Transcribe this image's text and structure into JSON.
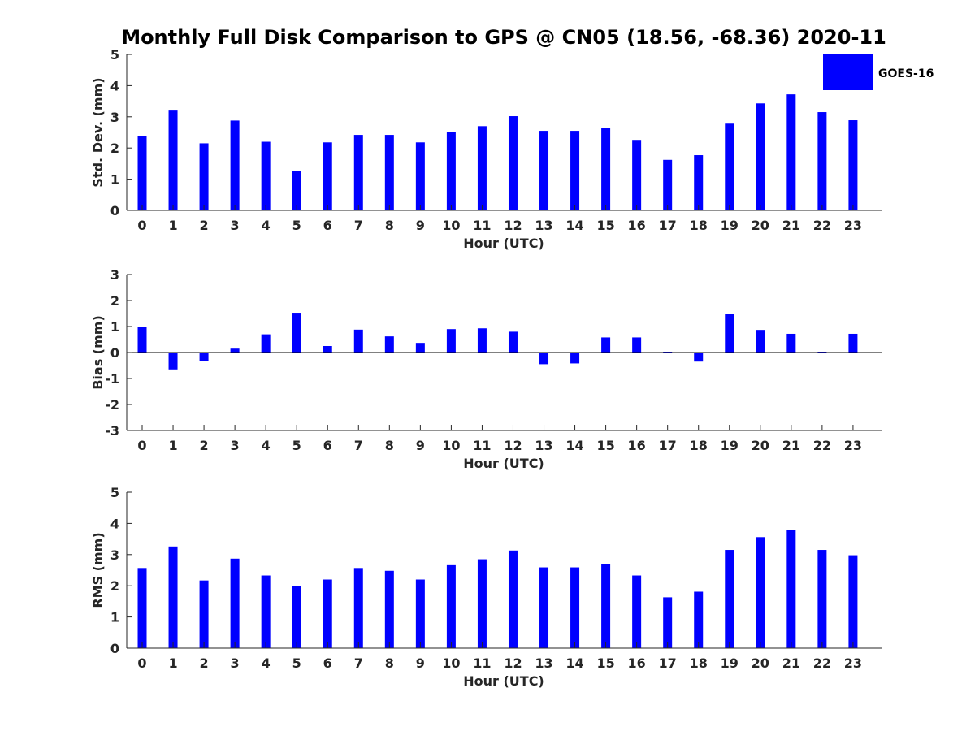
{
  "title": "Monthly Full Disk Comparison to GPS @ CN05 (18.56, -68.36) 2020-11",
  "legend": {
    "label": "GOES-16",
    "color": "#0000ff",
    "placement": "top-right"
  },
  "colors": {
    "bar": "#0000ff",
    "axis": "#262626"
  },
  "chart_data": [
    {
      "type": "bar",
      "xlabel": "Hour (UTC)",
      "ylabel": "Std. Dev. (mm)",
      "ylim": [
        0,
        5
      ],
      "yticks": [
        0,
        1,
        2,
        3,
        4,
        5
      ],
      "categories": [
        "0",
        "1",
        "2",
        "3",
        "4",
        "5",
        "6",
        "7",
        "8",
        "9",
        "10",
        "11",
        "12",
        "13",
        "14",
        "15",
        "16",
        "17",
        "18",
        "19",
        "20",
        "21",
        "22",
        "23"
      ],
      "series": [
        {
          "name": "GOES-16",
          "values": [
            2.39,
            3.2,
            2.15,
            2.88,
            2.2,
            1.25,
            2.18,
            2.42,
            2.42,
            2.18,
            2.5,
            2.7,
            3.02,
            2.55,
            2.55,
            2.63,
            2.26,
            1.62,
            1.77,
            2.78,
            3.43,
            3.72,
            3.15,
            2.89
          ]
        }
      ],
      "grid": false
    },
    {
      "type": "bar",
      "xlabel": "Hour (UTC)",
      "ylabel": "Bias (mm)",
      "ylim": [
        -3,
        3
      ],
      "yticks": [
        -3,
        -2,
        -1,
        0,
        1,
        2,
        3
      ],
      "categories": [
        "0",
        "1",
        "2",
        "3",
        "4",
        "5",
        "6",
        "7",
        "8",
        "9",
        "10",
        "11",
        "12",
        "13",
        "14",
        "15",
        "16",
        "17",
        "18",
        "19",
        "20",
        "21",
        "22",
        "23"
      ],
      "series": [
        {
          "name": "GOES-16",
          "values": [
            0.97,
            -0.65,
            -0.32,
            0.15,
            0.7,
            1.53,
            0.25,
            0.88,
            0.62,
            0.37,
            0.9,
            0.93,
            0.8,
            -0.45,
            -0.42,
            0.58,
            0.58,
            0.03,
            -0.35,
            1.5,
            0.87,
            0.72,
            0.03,
            0.72
          ]
        }
      ],
      "grid": false
    },
    {
      "type": "bar",
      "xlabel": "Hour (UTC)",
      "ylabel": "RMS (mm)",
      "ylim": [
        0,
        5
      ],
      "yticks": [
        0,
        1,
        2,
        3,
        4,
        5
      ],
      "categories": [
        "0",
        "1",
        "2",
        "3",
        "4",
        "5",
        "6",
        "7",
        "8",
        "9",
        "10",
        "11",
        "12",
        "13",
        "14",
        "15",
        "16",
        "17",
        "18",
        "19",
        "20",
        "21",
        "22",
        "23"
      ],
      "series": [
        {
          "name": "GOES-16",
          "values": [
            2.57,
            3.26,
            2.17,
            2.87,
            2.33,
            1.99,
            2.2,
            2.57,
            2.48,
            2.2,
            2.66,
            2.85,
            3.13,
            2.59,
            2.59,
            2.69,
            2.33,
            1.63,
            1.81,
            3.15,
            3.56,
            3.79,
            3.15,
            2.98
          ]
        }
      ],
      "grid": false
    }
  ]
}
